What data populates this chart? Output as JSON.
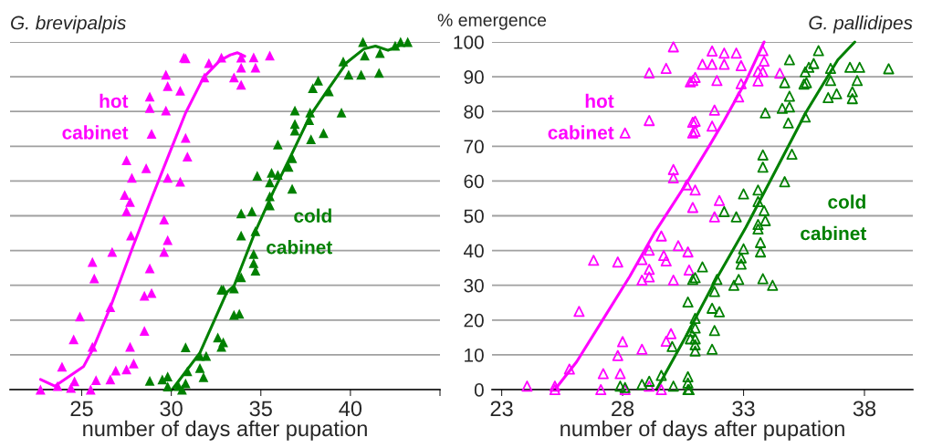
{
  "chart_data": [
    {
      "type": "scatter",
      "title": "G. brevipalpis",
      "xlabel": "number of days after pupation",
      "xlim": [
        21,
        45
      ],
      "xticks": [
        25,
        30,
        35,
        40,
        {
          "value": 45,
          "label": null
        }
      ],
      "ylim": [
        0,
        100
      ],
      "yticks": [
        {
          "value": 0,
          "label": null
        },
        {
          "value": 10,
          "label": null
        },
        {
          "value": 20,
          "label": null
        },
        {
          "value": 30,
          "label": null
        },
        {
          "value": 40,
          "label": null
        },
        {
          "value": 50,
          "label": null
        },
        {
          "value": 60,
          "label": null
        },
        {
          "value": 70,
          "label": null
        },
        {
          "value": 80,
          "label": null
        },
        {
          "value": 90,
          "label": null
        },
        {
          "value": 100,
          "label": null
        }
      ],
      "tick_labels": "x",
      "grid": "y",
      "legend": false,
      "series": [
        {
          "name": "hot\ncabinet",
          "marker": "triangle",
          "color": "#ff00ff",
          "x": [
            22.7,
            23.65,
            23.9,
            24.6,
            24.4,
            24.55,
            24.9,
            25.6,
            25.6,
            25.7,
            25.5,
            25.8,
            26.6,
            26.7,
            26.6,
            26.9,
            27.5,
            27.9,
            27.7,
            27.75,
            27.4,
            27.7,
            27.5,
            27.8,
            27.5,
            28.6,
            28.9,
            28.8,
            28.8,
            28.5,
            28.5,
            28.9,
            28.8,
            29.6,
            29.8,
            29.6,
            29.8,
            30.5,
            30.9,
            30.8,
            29.7,
            29.8,
            29.7,
            30.5,
            30.7,
            30.8,
            31.85,
            32.1,
            32.8,
            33.9,
            34.6,
            35.5,
            33.9,
            34.7,
            33.5,
            33.9
          ],
          "values": [
            0,
            1,
            6.6,
            2.4,
            0.5,
            14.5,
            21,
            12.3,
            36.7,
            32,
            0,
            2.7,
            23.7,
            39.6,
            2.9,
            5.5,
            5.8,
            7.5,
            12.3,
            44.3,
            56,
            54,
            51.3,
            60.9,
            66,
            63.7,
            73.6,
            81,
            84.3,
            16.9,
            27,
            27.8,
            34.9,
            39.6,
            43,
            48.9,
            60.9,
            59.8,
            67,
            72.4,
            80.3,
            87.3,
            90.6,
            86,
            95.5,
            95.3,
            89.8,
            93.9,
            95.5,
            95.5,
            95.6,
            96.1,
            92.6,
            92.6,
            89.8,
            87.7
          ]
        },
        {
          "type": "line",
          "marker": "none",
          "color": "#ff00ff",
          "x": [
            22.7,
            23.5,
            25.1,
            25.6,
            26.6,
            27.85,
            28.9,
            29.9,
            30.8,
            31.8,
            32.7,
            33.3,
            33.7,
            34.1
          ],
          "values": [
            2.9,
            1,
            6.6,
            11.4,
            23.7,
            41,
            55,
            68,
            79.6,
            89.8,
            94.6,
            96.3,
            96.9,
            95.9
          ]
        },
        {
          "name": "cold\ncabinet",
          "marker": "triangle",
          "color": "#008000",
          "x": [
            28.8,
            29.5,
            29.8,
            29.8,
            30.4,
            30.6,
            30.8,
            30.9,
            30.8,
            31.6,
            31.8,
            31.6,
            31.95,
            32.6,
            32.8,
            32.8,
            32.9,
            32.9,
            33.5,
            33.8,
            33.5,
            33.9,
            33.9,
            33.9,
            34.5,
            34.6,
            34.6,
            34.7,
            34.7,
            35.5,
            35.5,
            35.5,
            34.8,
            35.6,
            35.95,
            36.55,
            36.75,
            36.75,
            35.95,
            36.9,
            36.9,
            36.9,
            37.7,
            37.75,
            37.8,
            38.5,
            39.5,
            37.9,
            38.2,
            38.8,
            39.6,
            39.9,
            40.6,
            41.6,
            40.7,
            40.8,
            41.65,
            42.5,
            42.8,
            43.2
          ],
          "values": [
            2.5,
            2.9,
            3.8,
            0.9,
            1,
            0,
            1.8,
            5.3,
            12.2,
            6.2,
            3.6,
            9.7,
            9.7,
            15,
            12.3,
            28.8,
            13.6,
            28.8,
            21.5,
            21.8,
            29.1,
            32.3,
            44.3,
            50.7,
            51.3,
            39,
            36.4,
            34.2,
            45.6,
            53,
            55.6,
            59.6,
            61.5,
            62.4,
            61.8,
            64.1,
            66.6,
            57.8,
            70.5,
            74.5,
            76.4,
            80.3,
            77.5,
            79.7,
            72,
            73.8,
            79.7,
            86.7,
            88.9,
            85.8,
            94.4,
            90.6,
            90.6,
            91.1,
            100,
            96.1,
            96.8,
            98.9,
            100,
            100
          ]
        },
        {
          "type": "line",
          "marker": "none",
          "color": "#008000",
          "x": [
            30.05,
            31.6,
            33.1,
            33.5,
            34.7,
            35.7,
            36.7,
            37.75,
            38.8,
            39.8,
            40.75,
            41.4,
            42.1,
            42.7
          ],
          "values": [
            0,
            10.6,
            28,
            29.8,
            45.6,
            57,
            67.5,
            78.8,
            86.7,
            94.1,
            98,
            98.8,
            97.6,
            98.9
          ]
        }
      ]
    },
    {
      "type": "scatter",
      "title": "G. pallidipes",
      "ylabel": "% emergence",
      "xlabel": "number of days after pupation",
      "xlim": [
        22.6,
        40
      ],
      "xticks": [
        23,
        28,
        33,
        38
      ],
      "ylim": [
        0,
        100
      ],
      "yticks": [
        0,
        10,
        20,
        30,
        40,
        50,
        60,
        70,
        80,
        90,
        100
      ],
      "grid": "y",
      "legend": false,
      "series": [
        {
          "name": "hot\ncabinet",
          "marker": "triangle",
          "color": "#ff00ff",
          "x": [
            24.05,
            25.2,
            25.2,
            25.8,
            26.2,
            26.8,
            27.8,
            27.2,
            27.1,
            27.8,
            28.0,
            27.9,
            28.1,
            28.1,
            28.8,
            28.8,
            28.8,
            29.1,
            29.1,
            29.1,
            29.1,
            29.1,
            29.1,
            29.6,
            29.6,
            29.7,
            29.8,
            29.8,
            30.0,
            29.8,
            30.1,
            30.1,
            30.1,
            30.1,
            30.3,
            30.65,
            30.7,
            30.75,
            30.9,
            30.9,
            30.9,
            30.9,
            31.0,
            31.7,
            32.2,
            32.7,
            31.3,
            31.7,
            32.2,
            32.9,
            30.8,
            31.0,
            31.9,
            32.9,
            31.8,
            31.0,
            31.0,
            31.7,
            32.0,
            31.8,
            32.8,
            33.6,
            33.6,
            33.8,
            33.85,
            33.8,
            34.5
          ],
          "values": [
            1,
            1,
            0,
            5.9,
            22.5,
            37.2,
            36.7,
            4.6,
            0,
            9.8,
            13.8,
            4.6,
            0,
            73.8,
            11.6,
            31.5,
            37.4,
            40.1,
            34.6,
            32.4,
            1,
            91.1,
            77.4,
            44.2,
            0,
            38.6,
            37,
            13.9,
            16.1,
            92.4,
            98.6,
            63.3,
            60.9,
            31.5,
            41.4,
            58.9,
            39.6,
            34.4,
            88.9,
            52.4,
            76.9,
            73.8,
            57.4,
            97.4,
            96.8,
            96.8,
            93.6,
            93.6,
            93.6,
            93.2,
            88.5,
            89.8,
            88.9,
            88,
            80.4,
            77.2,
            74.3,
            75.8,
            54.4,
            49.7,
            84.2,
            88.8,
            91.5,
            97.5,
            94.5,
            91.4,
            91
          ]
        },
        {
          "type": "line",
          "marker": "none",
          "color": "#ff00ff",
          "x": [
            25.2,
            26.1,
            27.2,
            28.3,
            29.3,
            30.6,
            31.6,
            32.2,
            33.1,
            33.85
          ],
          "values": [
            0,
            8,
            20.3,
            32.6,
            44.9,
            58.9,
            70.3,
            77.4,
            88.8,
            100
          ]
        },
        {
          "name": "cold\ncabinet",
          "marker": "triangle",
          "color": "#008000",
          "x": [
            27.9,
            28.1,
            28.8,
            29.1,
            29.6,
            30.1,
            30.05,
            30.7,
            30.7,
            30.7,
            30.75,
            30.8,
            30.8,
            30.9,
            30.7,
            31.0,
            31.0,
            31.0,
            31.0,
            31.0,
            31.0,
            31.3,
            31.7,
            31.8,
            31.7,
            32.0,
            31.8,
            31.9,
            32.2,
            32.7,
            32.6,
            32.8,
            32.9,
            32.9,
            33.0,
            33.0,
            33.6,
            33.6,
            33.6,
            33.6,
            33.7,
            33.7,
            33.85,
            33.9,
            33.8,
            34.2,
            33.8,
            33.8,
            34.7,
            33.9,
            34.85,
            34.6,
            34.9,
            34.9,
            34.7,
            34.9,
            35.0,
            35.55,
            35.5,
            35.6,
            35.55,
            35.7,
            35.9,
            36.1,
            36.5,
            36.85,
            36.6,
            36.6,
            37.4,
            37.8,
            37.7,
            37.5,
            37.5,
            39.0
          ],
          "values": [
            1,
            0.6,
            1.5,
            2.4,
            4.1,
            1,
            12.4,
            25.2,
            3.7,
            1.9,
            0,
            16.8,
            14.6,
            31.7,
            0,
            20.5,
            17.7,
            14.6,
            12.9,
            11.1,
            32.2,
            35.3,
            11.6,
            17,
            23.4,
            22.4,
            28.2,
            31.7,
            51.2,
            49.7,
            30,
            31.7,
            36.1,
            37.9,
            40.5,
            56.3,
            57.4,
            54.1,
            47.5,
            46.2,
            42.3,
            39.6,
            51.5,
            48.6,
            31.9,
            30,
            64,
            67.5,
            59.8,
            79.6,
            76.7,
            80.9,
            81.3,
            84.4,
            88.3,
            94.9,
            67.7,
            78.4,
            87.9,
            88.3,
            91.4,
            92.7,
            93.8,
            97.5,
            84,
            85.1,
            88.9,
            92.4,
            92.7,
            92.7,
            88.9,
            85.7,
            83.7,
            92.3
          ]
        },
        {
          "type": "line",
          "marker": "none",
          "color": "#008000",
          "x": [
            29.4,
            30.6,
            31.8,
            33.1,
            34.35,
            35.6,
            36.9,
            37.6
          ],
          "values": [
            0,
            15.1,
            30.9,
            46.7,
            63.3,
            80,
            94.9,
            100
          ]
        }
      ]
    }
  ]
}
